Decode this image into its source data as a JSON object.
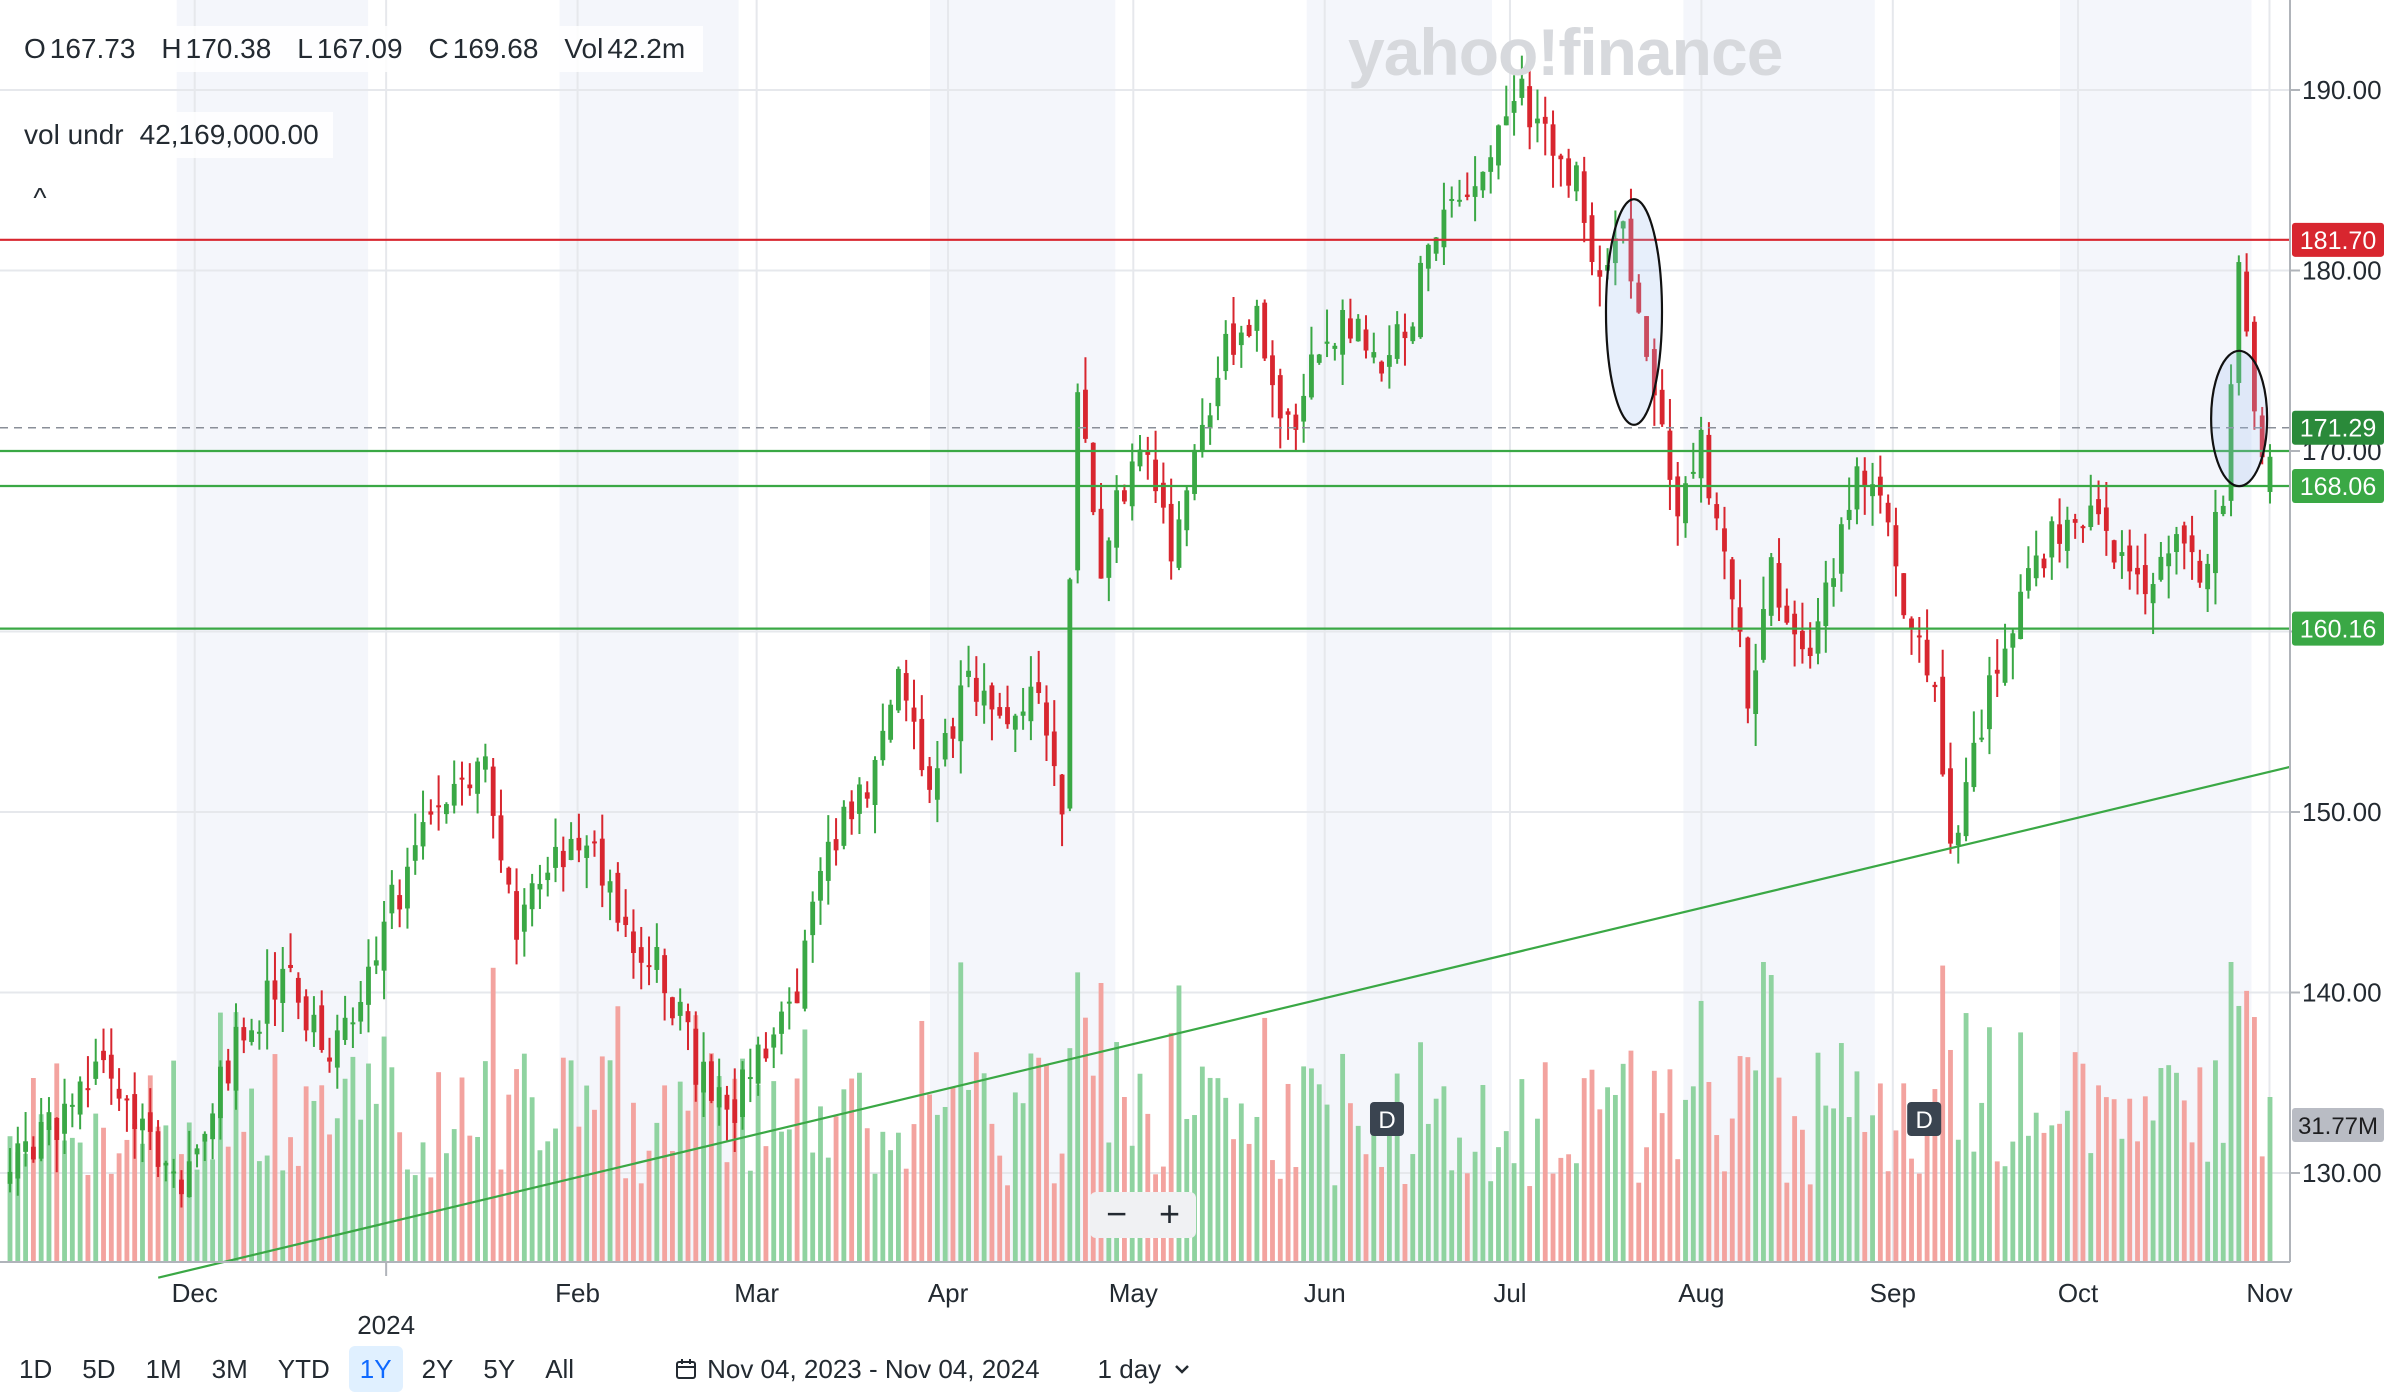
{
  "header": {
    "ohlc": [
      {
        "key": "O",
        "value": "167.73"
      },
      {
        "key": "H",
        "value": "170.38"
      },
      {
        "key": "L",
        "value": "167.09"
      },
      {
        "key": "C",
        "value": "169.68"
      },
      {
        "key": "Vol",
        "value": "42.2m"
      }
    ],
    "indicator": {
      "label": "vol undr",
      "value": "42,169,000.00"
    },
    "collapse_icon": "chevron-up-icon",
    "watermark": "yahoo!finance"
  },
  "chart_data": {
    "type": "candlestick",
    "ylim": [
      124,
      192
    ],
    "yticks": [
      130,
      140,
      150,
      160,
      170,
      180,
      190
    ],
    "ytick_labels": [
      "130.00",
      "140.00",
      "150.00",
      "160.00",
      "170.00",
      "180.00",
      "190.00"
    ],
    "xtick_labels": [
      "Dec",
      "2024",
      "Feb",
      "Mar",
      "Apr",
      "May",
      "Jun",
      "Jul",
      "Aug",
      "Sep",
      "Oct",
      "Nov"
    ],
    "x_start": "Nov 04, 2023",
    "x_end": "Nov 04, 2024",
    "colors": {
      "up": "#3aa845",
      "down": "#d8262f",
      "volume_up": "#8fd3a0",
      "volume_down": "#f3a39f",
      "line_green": "#3aa845",
      "line_red": "#e05257"
    },
    "levels": [
      {
        "value": 181.7,
        "color": "#d8262f",
        "label": "181.70"
      },
      {
        "value": 170.0,
        "color": "#3aa845",
        "label": ""
      },
      {
        "value": 168.06,
        "color": "#3aa845",
        "label": "168.06"
      },
      {
        "value": 160.16,
        "color": "#3aa845",
        "label": "160.16"
      }
    ],
    "last_price": {
      "value": 171.29,
      "label": "171.29",
      "color": "#2a8a3a"
    },
    "volume_label": {
      "value": "31.77M",
      "color": "#b9bcc4"
    },
    "trendline": {
      "from": {
        "date": "Nov 28, 2023",
        "value": 124.2
      },
      "to": {
        "date": "Nov 04, 2024",
        "value": 152.5
      },
      "color": "#3aa845"
    },
    "annotations": [
      {
        "type": "ellipse",
        "center_date": "Jul 24, 2024",
        "center_value": 177.7,
        "value_span": 12.5
      },
      {
        "type": "ellipse",
        "center_date": "Oct 30, 2024",
        "center_value": 171.8,
        "value_span": 7.5
      }
    ],
    "markers": [
      {
        "label": "D",
        "date": "Jun 14, 2024"
      },
      {
        "label": "D",
        "date": "Sep 09, 2024"
      }
    ],
    "anchors": [
      {
        "t": 0,
        "v": 130
      },
      {
        "t": 6,
        "v": 133
      },
      {
        "t": 12,
        "v": 137
      },
      {
        "t": 17,
        "v": 132
      },
      {
        "t": 22,
        "v": 129
      },
      {
        "t": 29,
        "v": 137
      },
      {
        "t": 35,
        "v": 141
      },
      {
        "t": 41,
        "v": 136
      },
      {
        "t": 48,
        "v": 144
      },
      {
        "t": 55,
        "v": 150
      },
      {
        "t": 61,
        "v": 153
      },
      {
        "t": 65,
        "v": 144
      },
      {
        "t": 69,
        "v": 147
      },
      {
        "t": 74,
        "v": 149
      },
      {
        "t": 79,
        "v": 143
      },
      {
        "t": 84,
        "v": 141
      },
      {
        "t": 88,
        "v": 136
      },
      {
        "t": 92,
        "v": 133
      },
      {
        "t": 97,
        "v": 137
      },
      {
        "t": 101,
        "v": 140
      },
      {
        "t": 105,
        "v": 148
      },
      {
        "t": 110,
        "v": 151
      },
      {
        "t": 114,
        "v": 157
      },
      {
        "t": 118,
        "v": 151
      },
      {
        "t": 123,
        "v": 158
      },
      {
        "t": 128,
        "v": 154
      },
      {
        "t": 132,
        "v": 157
      },
      {
        "t": 135,
        "v": 151
      },
      {
        "t": 137,
        "v": 173
      },
      {
        "t": 140,
        "v": 164
      },
      {
        "t": 145,
        "v": 171
      },
      {
        "t": 149,
        "v": 165
      },
      {
        "t": 152,
        "v": 170
      },
      {
        "t": 156,
        "v": 176
      },
      {
        "t": 160,
        "v": 177
      },
      {
        "t": 164,
        "v": 171
      },
      {
        "t": 168,
        "v": 176
      },
      {
        "t": 172,
        "v": 177
      },
      {
        "t": 176,
        "v": 175
      },
      {
        "t": 180,
        "v": 178
      },
      {
        "t": 184,
        "v": 184
      },
      {
        "t": 188,
        "v": 184
      },
      {
        "t": 193,
        "v": 190
      },
      {
        "t": 197,
        "v": 188
      },
      {
        "t": 201,
        "v": 185
      },
      {
        "t": 204,
        "v": 180
      },
      {
        "t": 207,
        "v": 183
      },
      {
        "t": 209,
        "v": 177
      },
      {
        "t": 211,
        "v": 174
      },
      {
        "t": 214,
        "v": 167
      },
      {
        "t": 217,
        "v": 170
      },
      {
        "t": 220,
        "v": 165
      },
      {
        "t": 223,
        "v": 156
      },
      {
        "t": 226,
        "v": 163
      },
      {
        "t": 230,
        "v": 158
      },
      {
        "t": 233,
        "v": 162
      },
      {
        "t": 237,
        "v": 168
      },
      {
        "t": 241,
        "v": 166
      },
      {
        "t": 244,
        "v": 160
      },
      {
        "t": 247,
        "v": 156
      },
      {
        "t": 249,
        "v": 148
      },
      {
        "t": 251,
        "v": 151
      },
      {
        "t": 254,
        "v": 157
      },
      {
        "t": 258,
        "v": 162
      },
      {
        "t": 262,
        "v": 165
      },
      {
        "t": 266,
        "v": 167
      },
      {
        "t": 270,
        "v": 164
      },
      {
        "t": 274,
        "v": 162
      },
      {
        "t": 277,
        "v": 165
      },
      {
        "t": 281,
        "v": 163
      },
      {
        "t": 284,
        "v": 167
      },
      {
        "t": 286,
        "v": 180
      },
      {
        "t": 288,
        "v": 172
      },
      {
        "t": 290,
        "v": 169.7
      }
    ]
  },
  "zoom": {
    "minus": "−",
    "plus": "+"
  },
  "toolbar": {
    "ranges": [
      "1D",
      "5D",
      "1M",
      "3M",
      "YTD",
      "1Y",
      "2Y",
      "5Y",
      "All"
    ],
    "active_range": "1Y",
    "date_range": "Nov 04, 2023 - Nov 04, 2024",
    "calendar_icon": "calendar-icon",
    "interval": "1 day",
    "interval_icon": "chevron-down-icon"
  }
}
